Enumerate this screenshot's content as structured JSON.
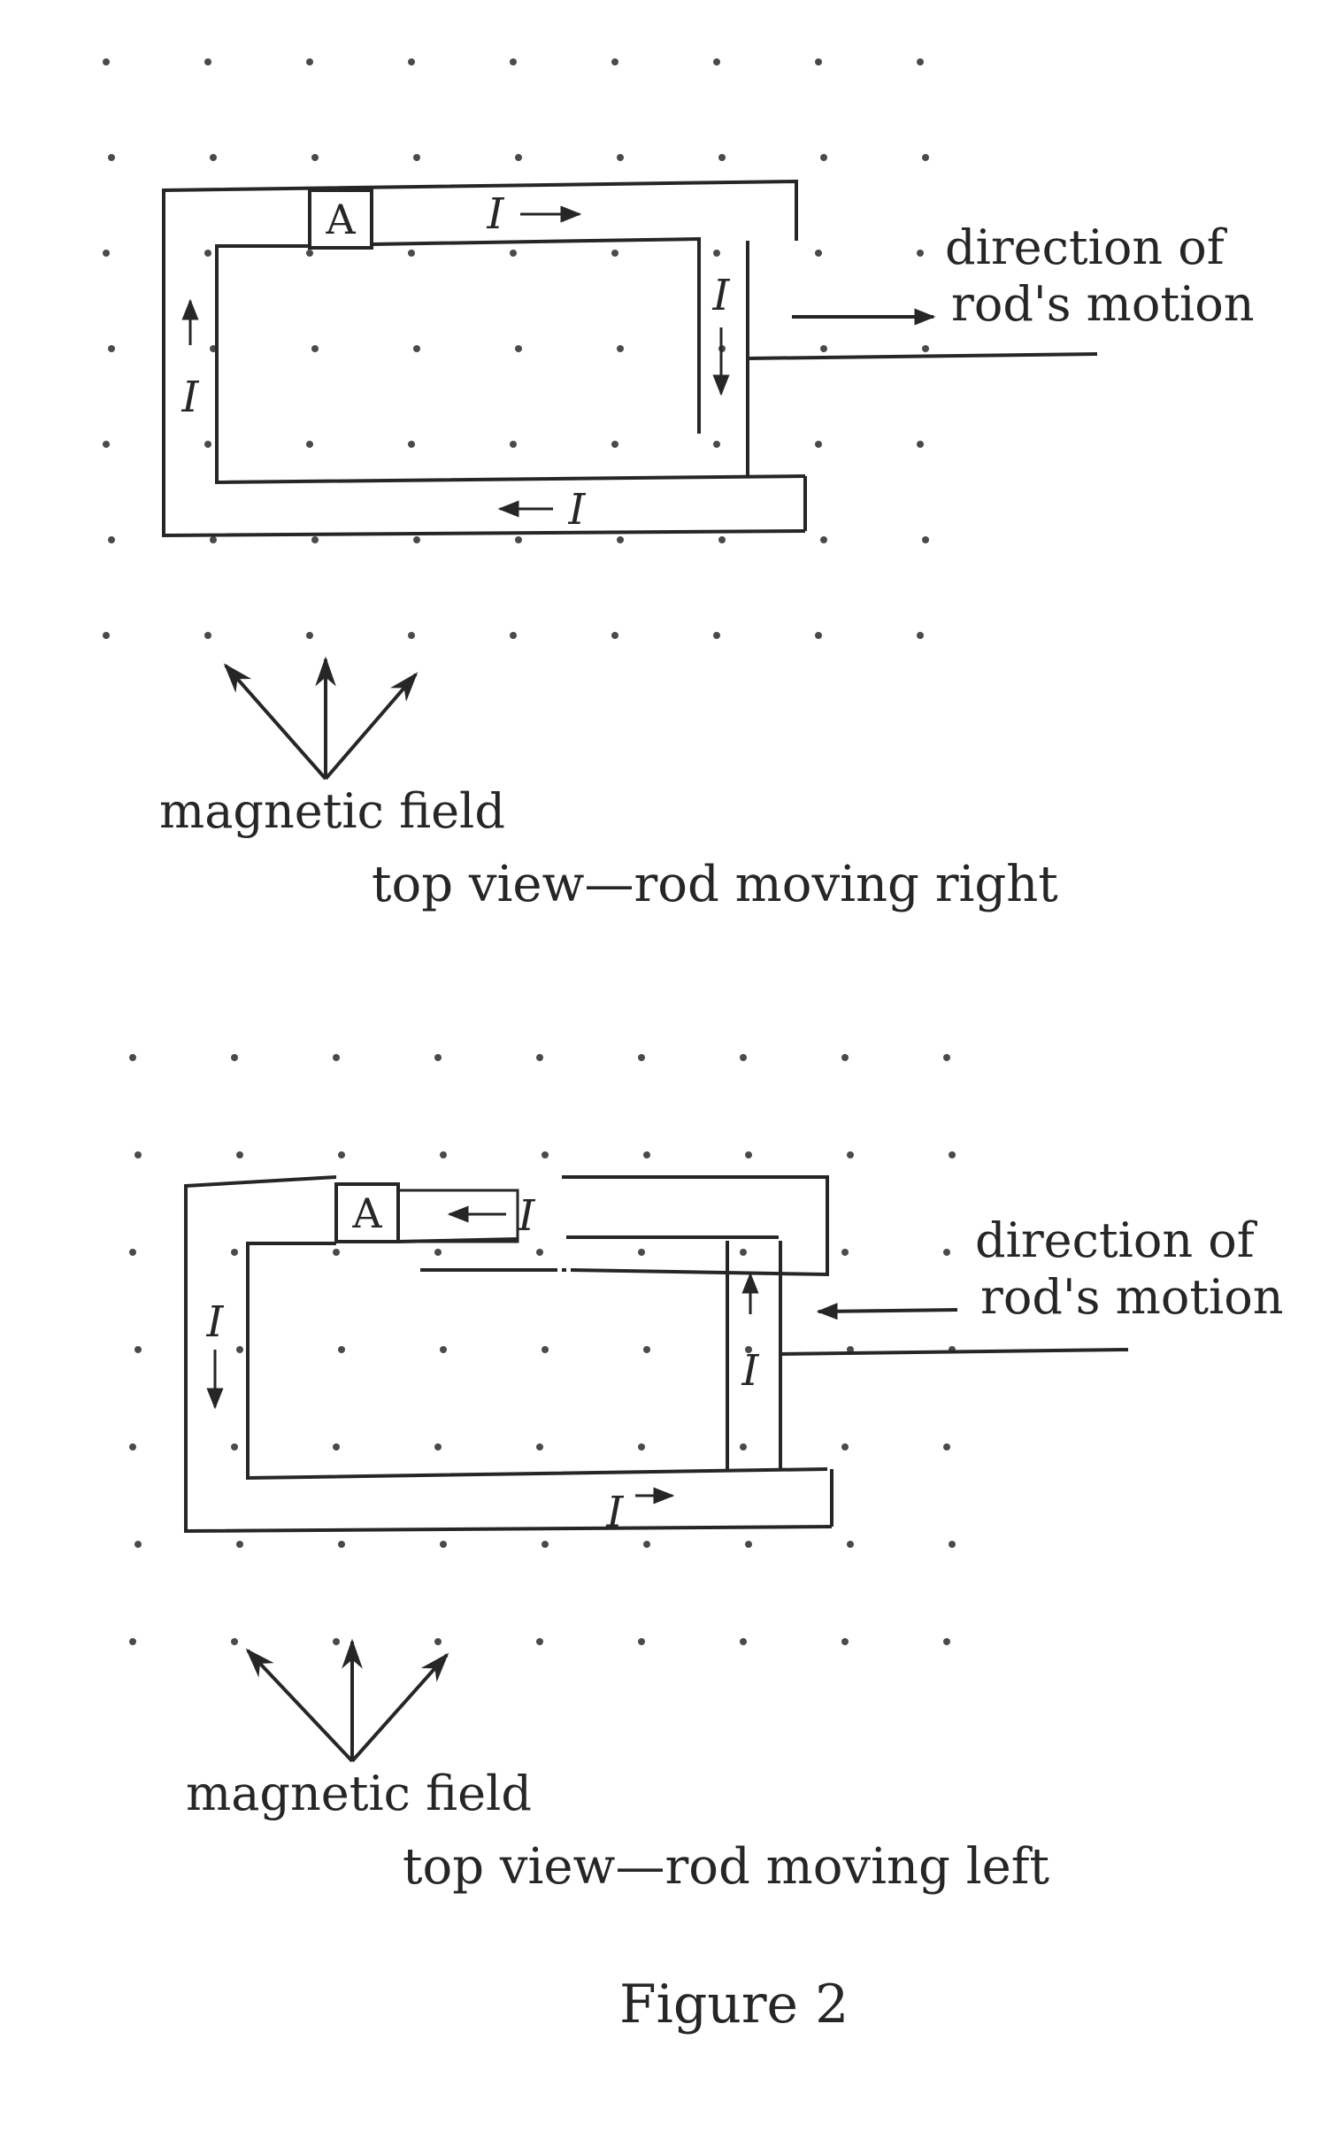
{
  "diagrams": [
    {
      "id": "rod-moving-right",
      "ammeter_label": "A",
      "current_labels": [
        "I",
        "I",
        "I",
        "I"
      ],
      "motion_label_line1": "direction of",
      "motion_label_line2": "rod's motion",
      "field_label": "magnetic field",
      "caption": "top view—rod moving right",
      "current_direction": "clockwise"
    },
    {
      "id": "rod-moving-left",
      "ammeter_label": "A",
      "current_labels": [
        "I",
        "I",
        "I",
        "I"
      ],
      "motion_label_line1": "direction of",
      "motion_label_line2": "rod's motion",
      "field_label": "magnetic field",
      "caption": "top view—rod moving left",
      "current_direction": "counterclockwise"
    }
  ],
  "figure_label": "Figure 2",
  "colors": {
    "ink": "#262626",
    "dot": "#4a4a4a",
    "background": "#ffffff"
  }
}
